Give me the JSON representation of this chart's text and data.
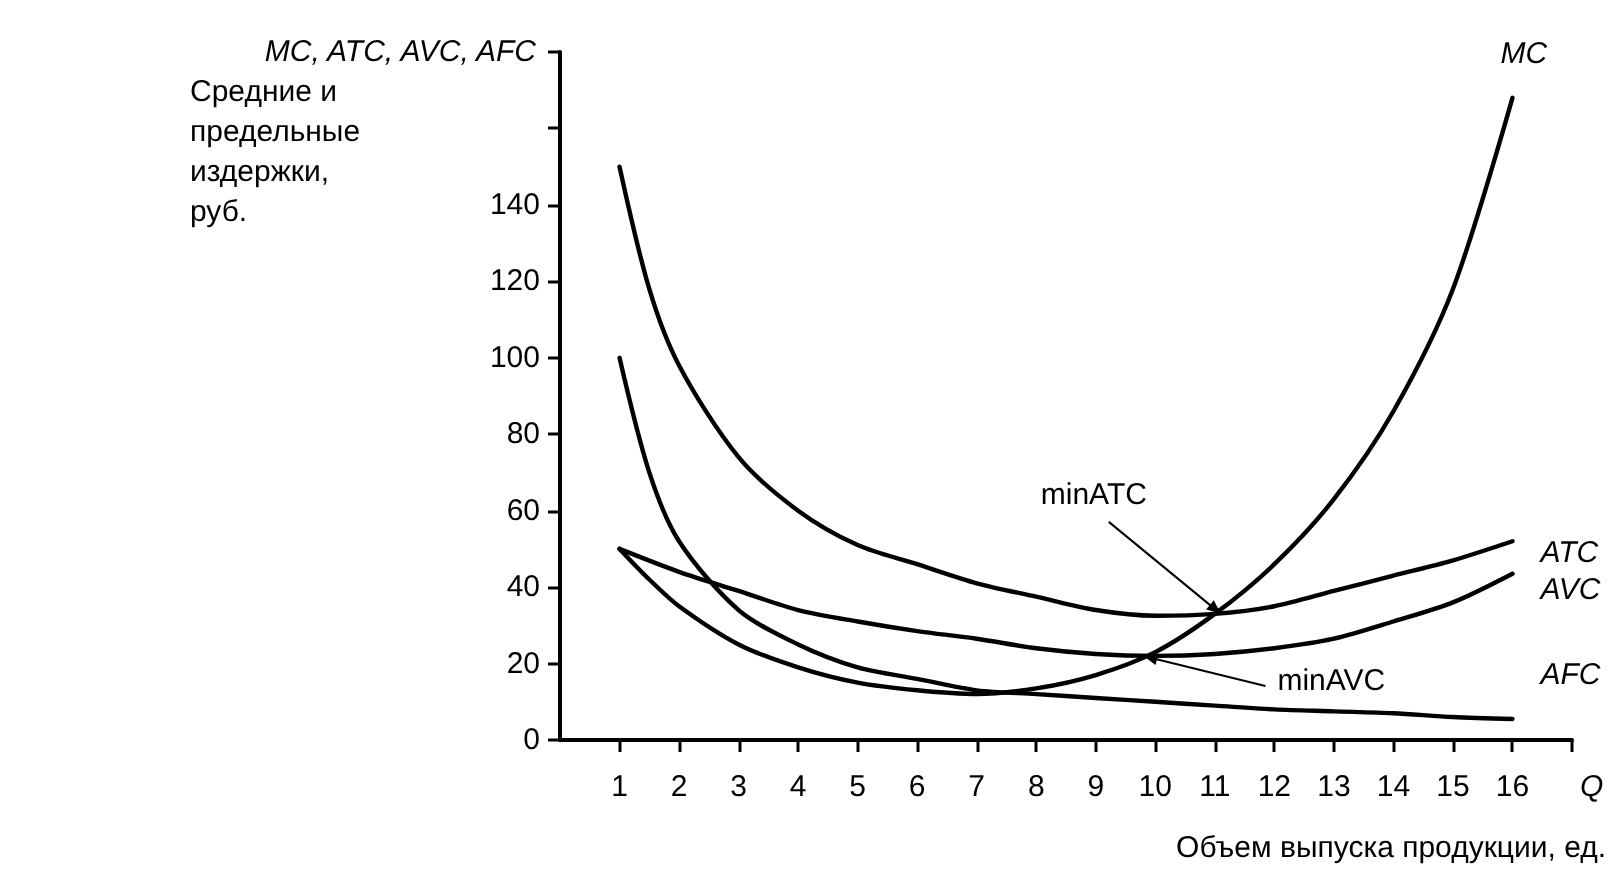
{
  "chart_data": {
    "type": "line",
    "xlabel": "Q",
    "ylabel": "MC, ATC, AVC, AFC",
    "xlim": [
      0,
      17
    ],
    "xticks": [
      1,
      2,
      3,
      4,
      5,
      6,
      7,
      8,
      9,
      10,
      11,
      12,
      13,
      14,
      15,
      16,
      {
        "value": 17,
        "label": null
      }
    ],
    "ylim": [
      0,
      180
    ],
    "yticks": [
      0,
      20,
      40,
      60,
      80,
      100,
      120,
      140,
      {
        "value": 160,
        "label": null
      },
      {
        "value": 180,
        "label": null
      }
    ],
    "grid": false,
    "legend": false,
    "marker": "none",
    "line_style": "solid",
    "series": [
      {
        "name": "MC",
        "color": "#000000",
        "x": [
          1,
          1.5,
          2,
          3,
          4,
          5,
          6,
          7,
          8,
          9,
          10,
          11,
          12,
          13,
          14,
          15,
          16
        ],
        "values": [
          50,
          42,
          35,
          25,
          19,
          15,
          13,
          12,
          13.5,
          17,
          23,
          33,
          46,
          63,
          86,
          118,
          168
        ]
      },
      {
        "name": "ATC",
        "color": "#000000",
        "x": [
          1,
          1.5,
          2,
          3,
          4,
          5,
          6,
          7,
          8,
          9,
          10,
          11,
          12,
          13,
          14,
          15,
          16
        ],
        "values": [
          150,
          118,
          98,
          74,
          60,
          51,
          46,
          41,
          37.5,
          34,
          32.5,
          33,
          35,
          39,
          43,
          47,
          52
        ]
      },
      {
        "name": "AVC",
        "color": "#000000",
        "x": [
          1,
          2,
          3,
          4,
          5,
          6,
          7,
          8,
          9,
          10,
          11,
          12,
          13,
          14,
          15,
          16
        ],
        "values": [
          50,
          44,
          39,
          34,
          31,
          28.5,
          26.5,
          24,
          22.5,
          22,
          22.5,
          24,
          26.5,
          31,
          36,
          43.5
        ]
      },
      {
        "name": "AFC",
        "color": "#000000",
        "x": [
          1,
          1.5,
          2,
          3,
          4,
          5,
          6,
          7,
          8,
          9,
          10,
          11,
          12,
          13,
          14,
          15,
          16
        ],
        "values": [
          100,
          70,
          52,
          34,
          25,
          19,
          16,
          13,
          12,
          11,
          10,
          9,
          8,
          7.5,
          7,
          6,
          5.5
        ]
      }
    ],
    "annotations": [
      "Средние и предельные издержки, руб.",
      "Объем выпуска продукции, ед.",
      {
        "text": "minATC",
        "x": 11.1,
        "y": 33
      },
      {
        "text": "minAVC",
        "x": 9.8,
        "y": 22
      }
    ]
  }
}
